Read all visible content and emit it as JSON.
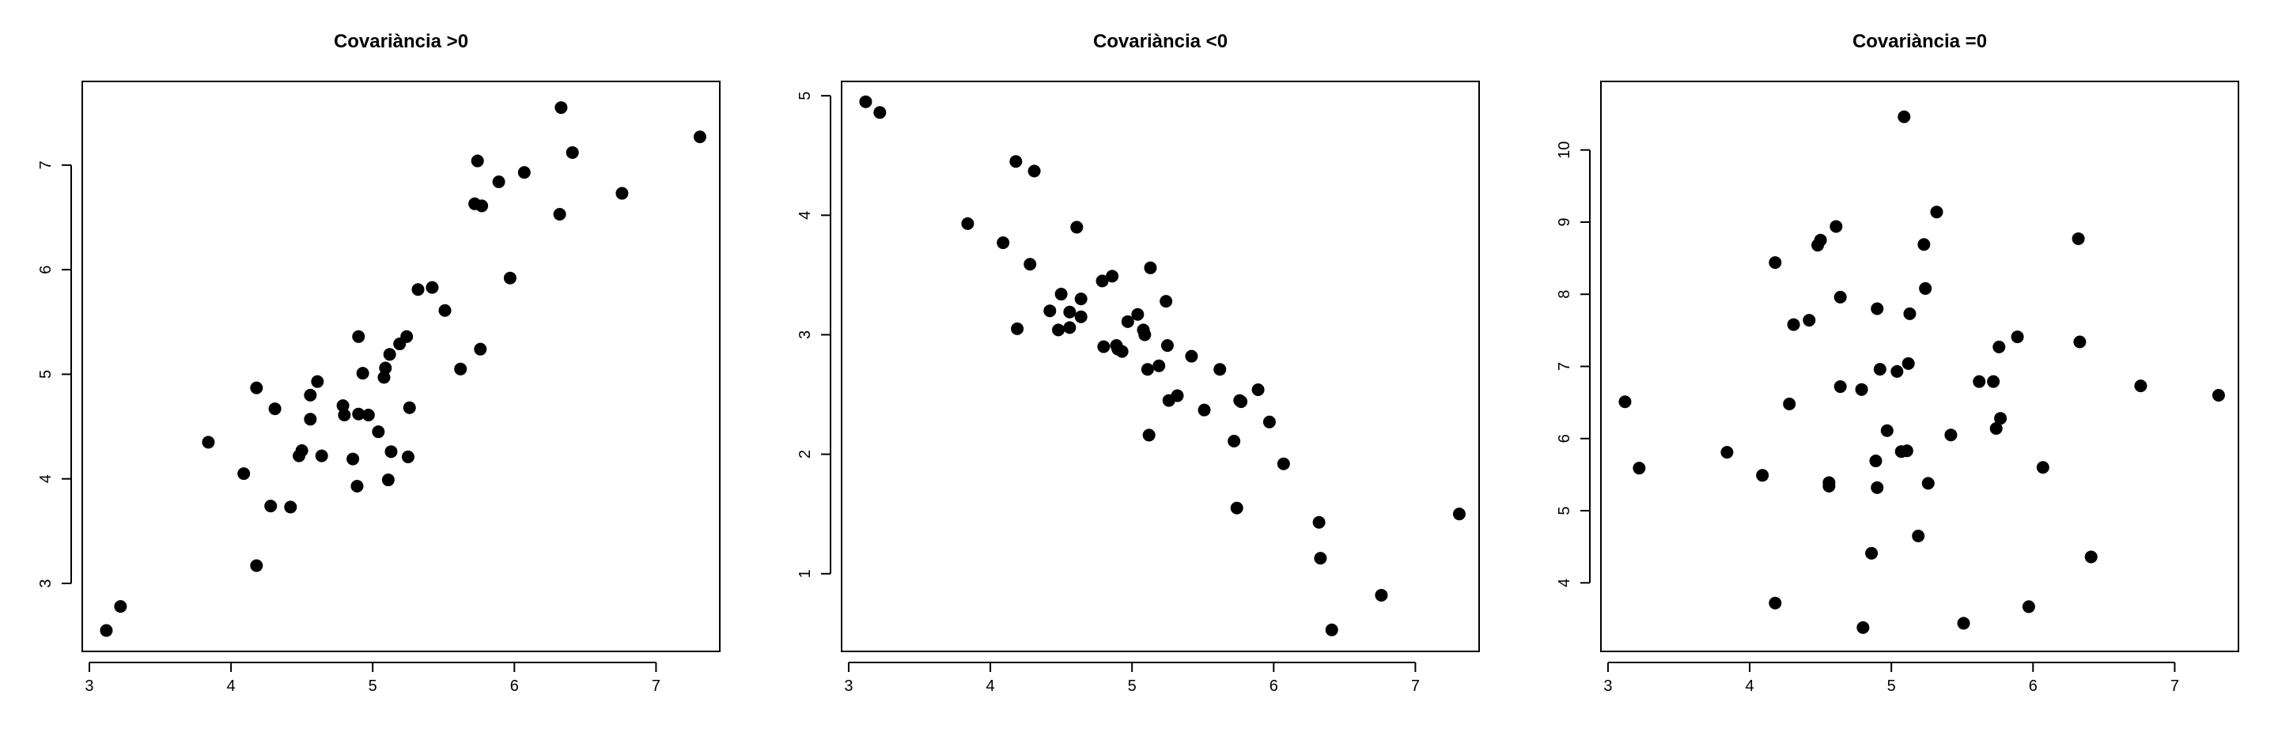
{
  "chart_data": [
    {
      "type": "scatter",
      "title": "Covariància >0",
      "xlabel": "",
      "ylabel": "",
      "xlim": [
        2.95,
        7.45
      ],
      "ylim": [
        2.35,
        7.8
      ],
      "xticks": [
        3,
        4,
        5,
        6,
        7
      ],
      "yticks": [
        3,
        4,
        5,
        6,
        7
      ],
      "grid": false,
      "legend": "none",
      "point_color": "#000000",
      "points": [
        [
          3.12,
          2.55
        ],
        [
          3.22,
          2.78
        ],
        [
          3.84,
          4.35
        ],
        [
          4.09,
          4.05
        ],
        [
          4.18,
          3.17
        ],
        [
          4.18,
          4.87
        ],
        [
          4.28,
          3.74
        ],
        [
          4.31,
          4.67
        ],
        [
          4.42,
          3.73
        ],
        [
          4.48,
          4.22
        ],
        [
          4.5,
          4.27
        ],
        [
          4.56,
          4.57
        ],
        [
          4.56,
          4.8
        ],
        [
          4.61,
          4.93
        ],
        [
          4.64,
          4.22
        ],
        [
          4.79,
          4.7
        ],
        [
          4.8,
          4.61
        ],
        [
          4.86,
          4.19
        ],
        [
          4.89,
          3.93
        ],
        [
          4.9,
          4.62
        ],
        [
          4.9,
          5.36
        ],
        [
          4.93,
          5.01
        ],
        [
          4.97,
          4.61
        ],
        [
          5.04,
          4.45
        ],
        [
          5.08,
          4.97
        ],
        [
          5.09,
          5.06
        ],
        [
          5.11,
          3.99
        ],
        [
          5.12,
          5.19
        ],
        [
          5.13,
          4.26
        ],
        [
          5.19,
          5.29
        ],
        [
          5.24,
          5.36
        ],
        [
          5.25,
          4.21
        ],
        [
          5.26,
          4.68
        ],
        [
          5.32,
          5.81
        ],
        [
          5.42,
          5.83
        ],
        [
          5.51,
          5.61
        ],
        [
          5.62,
          5.05
        ],
        [
          5.72,
          6.63
        ],
        [
          5.74,
          7.04
        ],
        [
          5.76,
          5.24
        ],
        [
          5.77,
          6.61
        ],
        [
          5.89,
          6.84
        ],
        [
          5.97,
          5.92
        ],
        [
          6.07,
          6.93
        ],
        [
          6.32,
          6.53
        ],
        [
          6.33,
          7.55
        ],
        [
          6.41,
          7.12
        ],
        [
          6.76,
          6.73
        ],
        [
          7.31,
          7.27
        ]
      ]
    },
    {
      "type": "scatter",
      "title": "Covariància <0",
      "xlabel": "",
      "ylabel": "",
      "xlim": [
        2.95,
        7.45
      ],
      "ylim": [
        0.35,
        5.12
      ],
      "xticks": [
        3,
        4,
        5,
        6,
        7
      ],
      "yticks": [
        1,
        2,
        3,
        4,
        5
      ],
      "grid": false,
      "legend": "none",
      "point_color": "#000000",
      "points": [
        [
          3.12,
          4.95
        ],
        [
          3.22,
          4.86
        ],
        [
          3.84,
          3.93
        ],
        [
          4.09,
          3.77
        ],
        [
          4.18,
          4.45
        ],
        [
          4.19,
          3.05
        ],
        [
          4.28,
          3.59
        ],
        [
          4.31,
          4.37
        ],
        [
          4.42,
          3.2
        ],
        [
          4.48,
          3.04
        ],
        [
          4.5,
          3.34
        ],
        [
          4.56,
          3.06
        ],
        [
          4.56,
          3.19
        ],
        [
          4.61,
          3.9
        ],
        [
          4.64,
          3.15
        ],
        [
          4.64,
          3.3
        ],
        [
          4.79,
          3.45
        ],
        [
          4.8,
          2.9
        ],
        [
          4.86,
          3.49
        ],
        [
          4.89,
          2.91
        ],
        [
          4.9,
          2.88
        ],
        [
          4.93,
          2.86
        ],
        [
          4.97,
          3.11
        ],
        [
          5.04,
          3.17
        ],
        [
          5.08,
          3.04
        ],
        [
          5.09,
          3.0
        ],
        [
          5.11,
          2.71
        ],
        [
          5.12,
          2.16
        ],
        [
          5.13,
          3.56
        ],
        [
          5.19,
          2.74
        ],
        [
          5.24,
          3.28
        ],
        [
          5.25,
          2.91
        ],
        [
          5.26,
          2.45
        ],
        [
          5.32,
          2.49
        ],
        [
          5.42,
          2.82
        ],
        [
          5.51,
          2.37
        ],
        [
          5.62,
          2.71
        ],
        [
          5.72,
          2.11
        ],
        [
          5.74,
          1.55
        ],
        [
          5.76,
          2.45
        ],
        [
          5.77,
          2.44
        ],
        [
          5.89,
          2.54
        ],
        [
          5.97,
          2.27
        ],
        [
          6.07,
          1.92
        ],
        [
          6.32,
          1.43
        ],
        [
          6.33,
          1.13
        ],
        [
          6.41,
          0.53
        ],
        [
          6.76,
          0.82
        ],
        [
          7.31,
          1.5
        ]
      ]
    },
    {
      "type": "scatter",
      "title": "Covariància =0",
      "xlabel": "",
      "ylabel": "",
      "xlim": [
        2.95,
        7.45
      ],
      "ylim": [
        3.05,
        10.95
      ],
      "xticks": [
        3,
        4,
        5,
        6,
        7
      ],
      "yticks": [
        4,
        5,
        6,
        7,
        8,
        9,
        10
      ],
      "grid": false,
      "legend": "none",
      "point_color": "#000000",
      "points": [
        [
          3.12,
          6.51
        ],
        [
          3.22,
          5.59
        ],
        [
          3.84,
          5.81
        ],
        [
          4.09,
          5.49
        ],
        [
          4.18,
          8.44
        ],
        [
          4.18,
          3.72
        ],
        [
          4.28,
          6.48
        ],
        [
          4.31,
          7.58
        ],
        [
          4.42,
          7.64
        ],
        [
          4.48,
          8.68
        ],
        [
          4.5,
          8.75
        ],
        [
          4.56,
          5.34
        ],
        [
          4.56,
          5.39
        ],
        [
          4.61,
          8.94
        ],
        [
          4.64,
          6.72
        ],
        [
          4.64,
          7.96
        ],
        [
          4.79,
          6.68
        ],
        [
          4.8,
          3.38
        ],
        [
          4.86,
          4.41
        ],
        [
          4.89,
          5.69
        ],
        [
          4.9,
          7.8
        ],
        [
          4.9,
          5.32
        ],
        [
          4.92,
          6.96
        ],
        [
          4.97,
          6.11
        ],
        [
          5.04,
          6.93
        ],
        [
          5.07,
          5.82
        ],
        [
          5.09,
          10.46
        ],
        [
          5.11,
          5.83
        ],
        [
          5.12,
          7.04
        ],
        [
          5.13,
          7.73
        ],
        [
          5.19,
          4.65
        ],
        [
          5.23,
          8.69
        ],
        [
          5.24,
          8.08
        ],
        [
          5.26,
          5.38
        ],
        [
          5.32,
          9.14
        ],
        [
          5.42,
          6.05
        ],
        [
          5.51,
          3.44
        ],
        [
          5.62,
          6.79
        ],
        [
          5.72,
          6.79
        ],
        [
          5.74,
          6.14
        ],
        [
          5.76,
          7.27
        ],
        [
          5.77,
          6.28
        ],
        [
          5.89,
          7.41
        ],
        [
          5.97,
          3.67
        ],
        [
          6.07,
          5.6
        ],
        [
          6.32,
          8.77
        ],
        [
          6.33,
          7.34
        ],
        [
          6.41,
          4.36
        ],
        [
          6.76,
          6.73
        ],
        [
          7.31,
          6.6
        ]
      ]
    }
  ]
}
